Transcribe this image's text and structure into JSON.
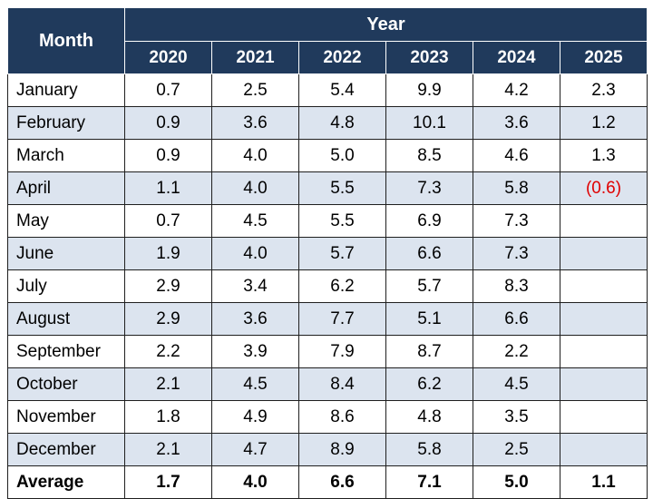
{
  "chart_data": {
    "type": "table",
    "header": {
      "row_label": "Month",
      "group_label": "Year",
      "years": [
        "2020",
        "2021",
        "2022",
        "2023",
        "2024",
        "2025"
      ]
    },
    "rows": [
      {
        "month": "January",
        "values": [
          "0.7",
          "2.5",
          "5.4",
          "9.9",
          "4.2",
          "2.3"
        ]
      },
      {
        "month": "February",
        "values": [
          "0.9",
          "3.6",
          "4.8",
          "10.1",
          "3.6",
          "1.2"
        ]
      },
      {
        "month": "March",
        "values": [
          "0.9",
          "4.0",
          "5.0",
          "8.5",
          "4.6",
          "1.3"
        ]
      },
      {
        "month": "April",
        "values": [
          "1.1",
          "4.0",
          "5.5",
          "7.3",
          "5.8",
          "(0.6)"
        ]
      },
      {
        "month": "May",
        "values": [
          "0.7",
          "4.5",
          "5.5",
          "6.9",
          "7.3",
          ""
        ]
      },
      {
        "month": "June",
        "values": [
          "1.9",
          "4.0",
          "5.7",
          "6.6",
          "7.3",
          ""
        ]
      },
      {
        "month": "July",
        "values": [
          "2.9",
          "3.4",
          "6.2",
          "5.7",
          "8.3",
          ""
        ]
      },
      {
        "month": "August",
        "values": [
          "2.9",
          "3.6",
          "7.7",
          "5.1",
          "6.6",
          ""
        ]
      },
      {
        "month": "September",
        "values": [
          "2.2",
          "3.9",
          "7.9",
          "8.7",
          "2.2",
          ""
        ]
      },
      {
        "month": "October",
        "values": [
          "2.1",
          "4.5",
          "8.4",
          "6.2",
          "4.5",
          ""
        ]
      },
      {
        "month": "November",
        "values": [
          "1.8",
          "4.9",
          "8.6",
          "4.8",
          "3.5",
          ""
        ]
      },
      {
        "month": "December",
        "values": [
          "2.1",
          "4.7",
          "8.9",
          "5.8",
          "2.5",
          ""
        ]
      }
    ],
    "average": {
      "label": "Average",
      "values": [
        "1.7",
        "4.0",
        "6.6",
        "7.1",
        "5.0",
        "1.1"
      ]
    }
  },
  "colors": {
    "header_bg": "#203a5c",
    "header_text": "#ffffff",
    "row_shade": "#dce4ef",
    "negative_text": "#e00000"
  }
}
